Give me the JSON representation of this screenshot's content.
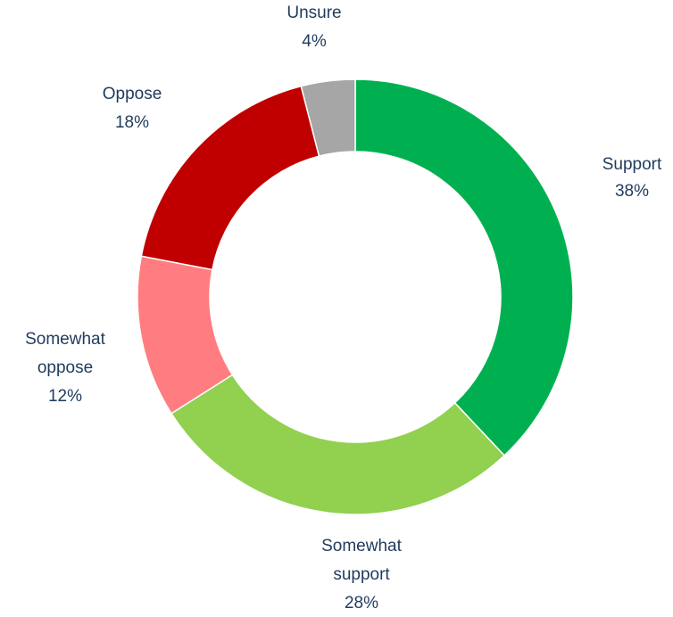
{
  "chart_data": {
    "type": "pie",
    "style": "donut",
    "slices": [
      {
        "label": [
          "Support"
        ],
        "value_label": "38%",
        "value": 38,
        "color": "#00b050"
      },
      {
        "label": [
          "Somewhat",
          "support"
        ],
        "value_label": "28%",
        "value": 28,
        "color": "#92d050"
      },
      {
        "label": [
          "Somewhat",
          "oppose"
        ],
        "value_label": "12%",
        "value": 12,
        "color": "#ff7c80"
      },
      {
        "label": [
          "Oppose"
        ],
        "value_label": "18%",
        "value": 18,
        "color": "#c00000"
      },
      {
        "label": [
          "Unsure"
        ],
        "value_label": "4%",
        "value": 4,
        "color": "#a6a6a6"
      }
    ],
    "legend": "none",
    "label_color": "#1f3b5c"
  }
}
